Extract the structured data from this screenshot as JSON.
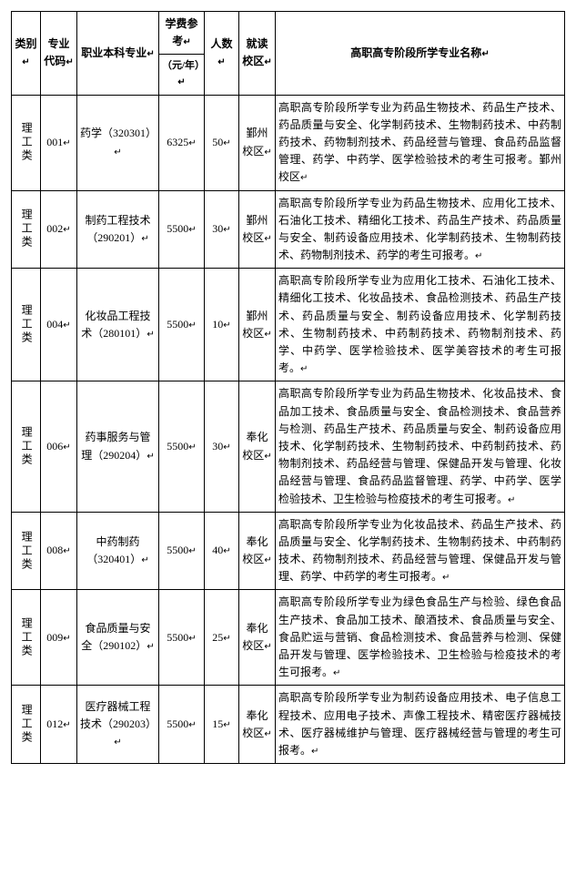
{
  "headers": {
    "category": "类别",
    "code": "专业代码",
    "major": "职业本科专业",
    "fee": "学费参考",
    "fee_unit": "（元/年）",
    "count": "人数",
    "campus": "就读校区",
    "desc": "高职高专阶段所学专业名称"
  },
  "category_label": "理工类",
  "mark": "↵",
  "rows": [
    {
      "code": "001",
      "major": "药学（320301）",
      "fee": "6325",
      "count": "50",
      "campus": "鄞州校区",
      "desc": "高职高专阶段所学专业为药品生物技术、药品生产技术、药品质量与安全、化学制药技术、生物制药技术、中药制药技术、药物制剂技术、药品经营与管理、食品药品监督管理、药学、中药学、医学检验技术的考生可报考。鄞州校区"
    },
    {
      "code": "002",
      "major": "制药工程技术（290201）",
      "fee": "5500",
      "count": "30",
      "campus": "鄞州校区",
      "desc": "高职高专阶段所学专业为药品生物技术、应用化工技术、石油化工技术、精细化工技术、药品生产技术、药品质量与安全、制药设备应用技术、化学制药技术、生物制药技术、药物制剂技术、药学的考生可报考。"
    },
    {
      "code": "004",
      "major": "化妆品工程技术（280101）",
      "fee": "5500",
      "count": "10",
      "campus": "鄞州校区",
      "desc": "高职高专阶段所学专业为应用化工技术、石油化工技术、精细化工技术、化妆品技术、食品检测技术、药品生产技术、药品质量与安全、制药设备应用技术、化学制药技术、生物制药技术、中药制药技术、药物制剂技术、药学、中药学、医学检验技术、医学美容技术的考生可报考。"
    },
    {
      "code": "006",
      "major": "药事服务与管理（290204）",
      "fee": "5500",
      "count": "30",
      "campus": "奉化校区",
      "desc": "高职高专阶段所学专业为药品生物技术、化妆品技术、食品加工技术、食品质量与安全、食品检测技术、食品营养与检测、药品生产技术、药品质量与安全、制药设备应用技术、化学制药技术、生物制药技术、中药制药技术、药物制剂技术、药品经营与管理、保健品开发与管理、化妆品经营与管理、食品药品监督管理、药学、中药学、医学检验技术、卫生检验与检疫技术的考生可报考。"
    },
    {
      "code": "008",
      "major": "中药制药（320401）",
      "fee": "5500",
      "count": "40",
      "campus": "奉化校区",
      "desc": "高职高专阶段所学专业为化妆品技术、药品生产技术、药品质量与安全、化学制药技术、生物制药技术、中药制药技术、药物制剂技术、药品经营与管理、保健品开发与管理、药学、中药学的考生可报考。"
    },
    {
      "code": "009",
      "major": "食品质量与安全（290102）",
      "fee": "5500",
      "count": "25",
      "campus": "奉化校区",
      "desc": "高职高专阶段所学专业为绿色食品生产与检验、绿色食品生产技术、食品加工技术、酿酒技术、食品质量与安全、食品贮运与营销、食品检测技术、食品营养与检测、保健品开发与管理、医学检验技术、卫生检验与检疫技术的考生可报考。"
    },
    {
      "code": "012",
      "major": "医疗器械工程技术（290203）",
      "fee": "5500",
      "count": "15",
      "campus": "奉化校区",
      "desc": "高职高专阶段所学专业为制药设备应用技术、电子信息工程技术、应用电子技术、声像工程技术、精密医疗器械技术、医疗器械维护与管理、医疗器械经营与管理的考生可报考。"
    }
  ],
  "table_style": {
    "border_color": "#000000",
    "background": "#ffffff",
    "font_family": "SimSun",
    "base_font_size": 12
  }
}
